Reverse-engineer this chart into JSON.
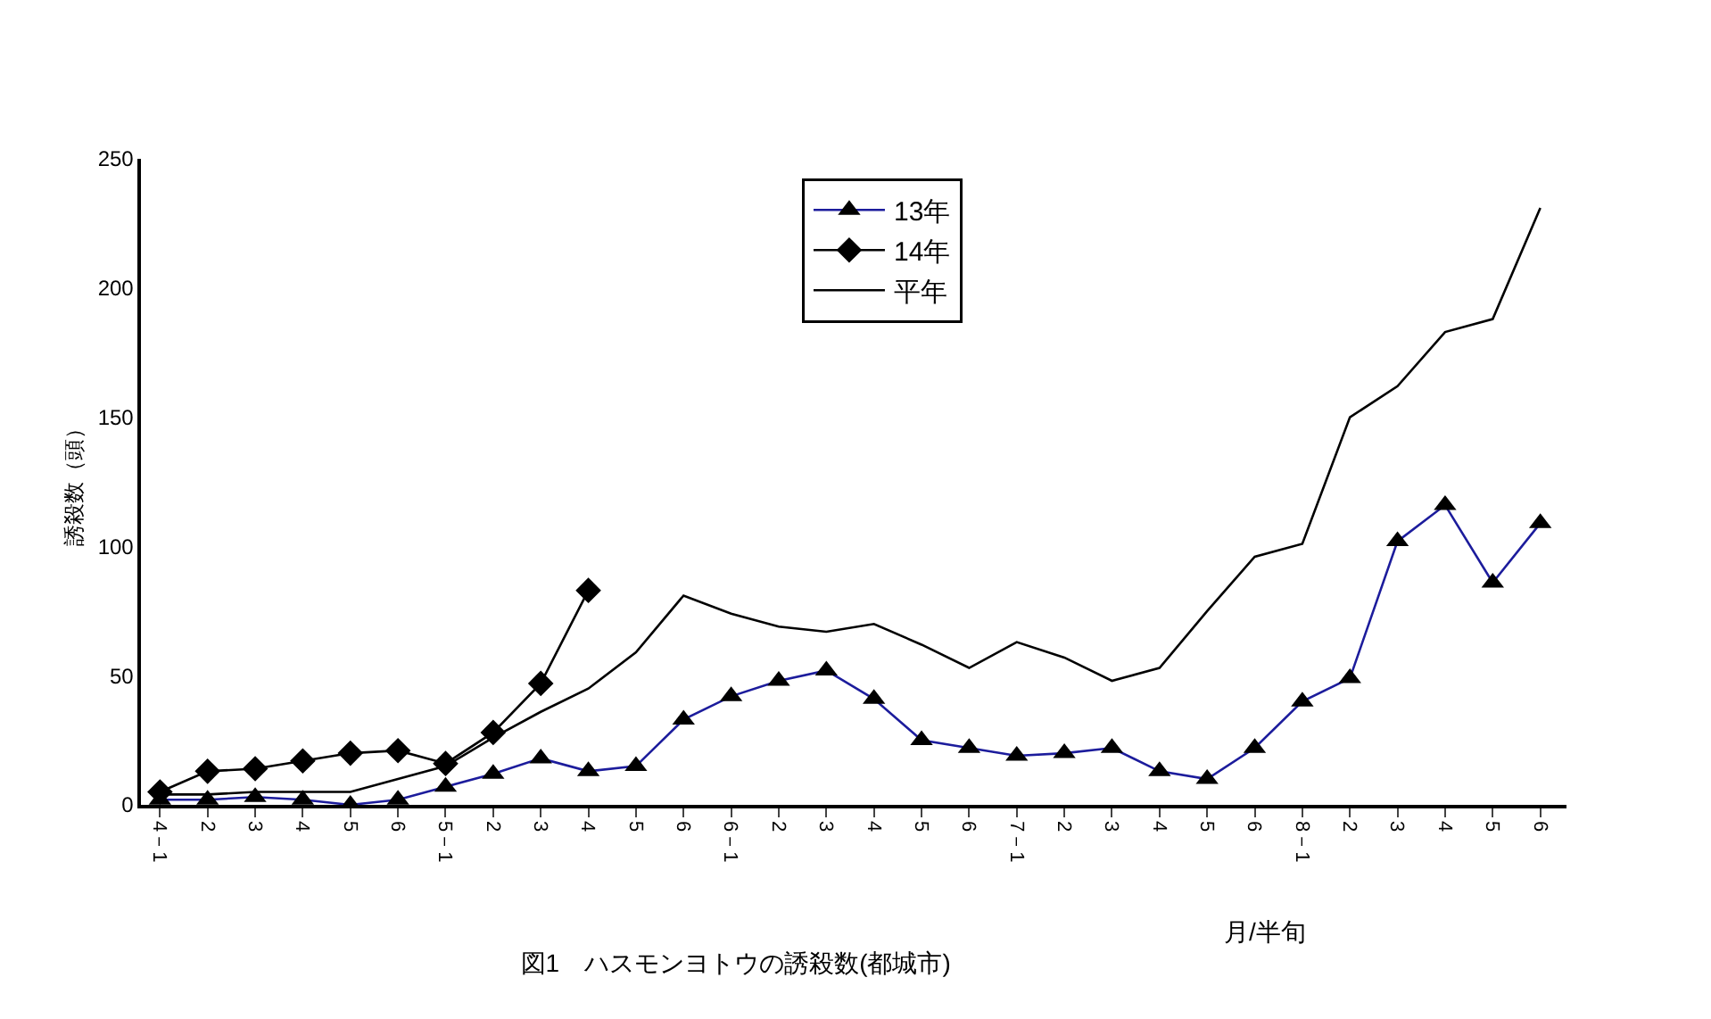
{
  "chart_data": {
    "type": "line",
    "title": "図1　ハスモンヨトウの誘殺数(都城市)",
    "xlabel": "月/半旬",
    "ylabel": "誘殺数（頭）",
    "categories": [
      "4－1",
      "2",
      "3",
      "4",
      "5",
      "6",
      "5－1",
      "2",
      "3",
      "4",
      "5",
      "6",
      "6－1",
      "2",
      "3",
      "4",
      "5",
      "6",
      "7－1",
      "2",
      "3",
      "4",
      "5",
      "6",
      "8－1",
      "2",
      "3",
      "4",
      "5",
      "6"
    ],
    "series": [
      {
        "name": "13年",
        "color": "#1c1c9c",
        "marker": "triangle",
        "values": [
          2,
          2,
          3,
          2,
          0,
          2,
          7,
          12,
          18,
          13,
          15,
          33,
          42,
          48,
          52,
          41,
          25,
          22,
          19,
          20,
          22,
          13,
          10,
          22,
          40,
          49,
          102,
          116,
          86,
          109
        ]
      },
      {
        "name": "14年",
        "color": "#000000",
        "marker": "diamond",
        "values": [
          5,
          13,
          14,
          17,
          20,
          21,
          16,
          28,
          47,
          83,
          null,
          null,
          null,
          null,
          null,
          null,
          null,
          null,
          null,
          null,
          null,
          null,
          null,
          null,
          null,
          null,
          null,
          null,
          null,
          null
        ]
      },
      {
        "name": "平年",
        "color": "#000000",
        "marker": "none",
        "values": [
          4,
          4,
          5,
          5,
          5,
          10,
          15,
          26,
          36,
          45,
          59,
          81,
          74,
          69,
          67,
          70,
          62,
          53,
          63,
          57,
          48,
          53,
          75,
          96,
          101,
          150,
          162,
          183,
          188,
          231
        ]
      }
    ],
    "ylim": [
      0,
      250
    ],
    "yticks": [
      0,
      50,
      100,
      150,
      200,
      250
    ],
    "grid": false,
    "legend": "top"
  }
}
